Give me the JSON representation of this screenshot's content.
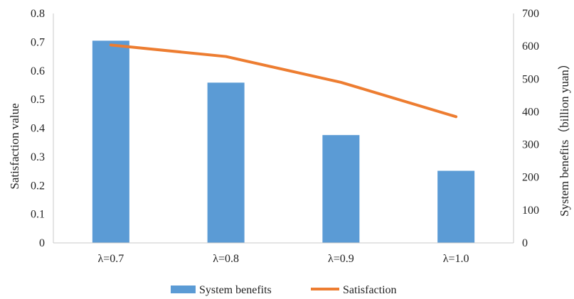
{
  "chart_data": {
    "type": "bar+line",
    "categories": [
      "λ=0.7",
      "λ=0.8",
      "λ=0.9",
      "λ=1.0"
    ],
    "series": [
      {
        "name": "System benefits",
        "type": "bar",
        "axis": "right",
        "values": [
          617,
          489,
          329,
          220
        ],
        "color": "#5b9bd5"
      },
      {
        "name": "Satisfaction",
        "type": "line",
        "axis": "left",
        "values": [
          0.69,
          0.65,
          0.56,
          0.44
        ],
        "color": "#ed7d31"
      }
    ],
    "y_left": {
      "label": "Satisfaction value",
      "lim": [
        0,
        0.8
      ],
      "ticks": [
        "0",
        "0.1",
        "0.2",
        "0.3",
        "0.4",
        "0.5",
        "0.6",
        "0.7",
        "0.8"
      ]
    },
    "y_right": {
      "label": "System benefits（billion yuan）",
      "lim": [
        0,
        700
      ],
      "ticks": [
        "0",
        "100",
        "200",
        "300",
        "400",
        "500",
        "600",
        "700"
      ]
    },
    "grid": false,
    "legend_position": "bottom"
  }
}
